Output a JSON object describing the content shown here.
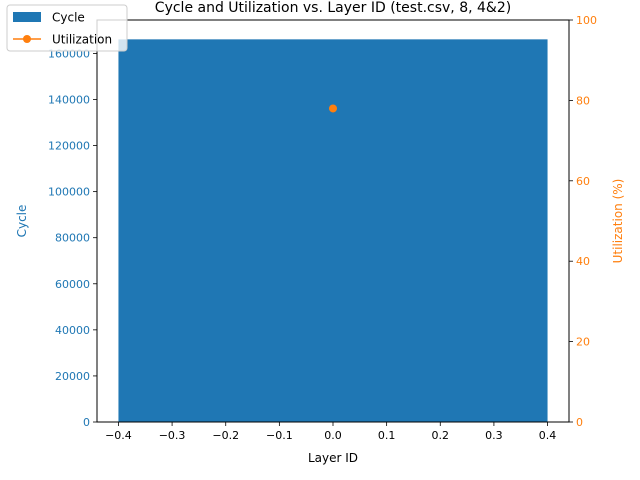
{
  "chart_data": {
    "type": "bar",
    "title": "Cycle and Utilization vs. Layer ID (test.csv, 8, 4&2)",
    "xlabel": "Layer ID",
    "ylabel_left": "Cycle",
    "ylabel_right": "Utilization (%)",
    "x_ticks": [
      "−0.4",
      "−0.3",
      "−0.2",
      "−0.1",
      "0.0",
      "0.1",
      "0.2",
      "0.3",
      "0.4"
    ],
    "y_left_ticks": [
      "0",
      "20000",
      "40000",
      "60000",
      "80000",
      "100000",
      "120000",
      "140000",
      "160000"
    ],
    "y_right_ticks": [
      "0",
      "20",
      "40",
      "60",
      "80",
      "100"
    ],
    "xlim": [
      -0.44,
      0.44
    ],
    "ylim_left": [
      0,
      174500
    ],
    "ylim_right": [
      0,
      100
    ],
    "legend_position": "top-left",
    "colors": {
      "cycle": "#1f77b4",
      "utilization": "#ff7f0e"
    },
    "series": [
      {
        "name": "Cycle",
        "kind": "bar",
        "axis": "left",
        "x": [
          0
        ],
        "values": [
          166100
        ],
        "bar_width": 0.8
      },
      {
        "name": "Utilization",
        "kind": "line",
        "axis": "right",
        "x": [
          0
        ],
        "values": [
          78
        ]
      }
    ]
  }
}
